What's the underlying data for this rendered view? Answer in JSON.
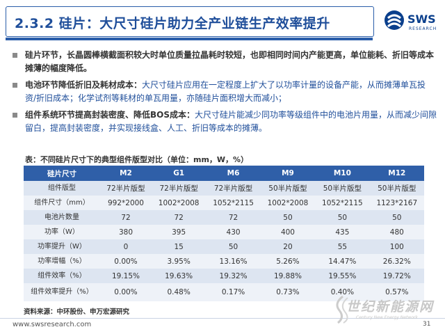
{
  "header": {
    "title": "2.3.2 硅片：大尺寸硅片助力全产业链生产效率提升",
    "logo_text": "SWS",
    "logo_sub": "RESEARCH"
  },
  "bullets": [
    {
      "bold": "硅片环节，长晶圆棒横截面积较大时单位质量拉晶耗时较短，也即相同时间内产能更高，单位能耗、折旧等成本摊薄的幅度降低。",
      "rest": ""
    },
    {
      "bold": "电池环节降低折旧及耗材成本：",
      "rest": "大尺寸硅片应用在一定程度上扩大了以功率计量的设备产能，从而摊薄单瓦投资/折旧成本；化学试剂等耗材的单瓦用量，亦随硅片面积增大而减小；"
    },
    {
      "bold": "组件系统环节提高封装密度、降低BOS成本：",
      "rest": "大尺寸硅片能减少同功率等级组件中的电池片用量，从而减少间隙留白，提高封装密度，并实现接线盒、人工、折旧等成本的摊薄。"
    }
  ],
  "table": {
    "caption": "表：不同硅片尺寸下的典型组件版型对比（单位：mm，W，%）",
    "headers": [
      "硅片尺寸",
      "M2",
      "G1",
      "M6",
      "M9",
      "M10",
      "M12"
    ],
    "rows": [
      [
        "组件版型",
        "72半片版型",
        "72半片版型",
        "72半片版型",
        "50半片版型",
        "50半片版型",
        "50半片版型"
      ],
      [
        "组件尺寸（mm）",
        "992*2000",
        "1002*2008",
        "1052*2115",
        "1002*2008",
        "1052*2115",
        "1123*2167"
      ],
      [
        "电池片数量",
        "72",
        "72",
        "72",
        "50",
        "50",
        "50"
      ],
      [
        "功率（W）",
        "380",
        "395",
        "430",
        "400",
        "435",
        "480"
      ],
      [
        "功率提升（W）",
        "0",
        "15",
        "50",
        "20",
        "55",
        "100"
      ],
      [
        "功率增幅（%）",
        "0.00%",
        "3.95%",
        "13.16%",
        "5.26%",
        "14.47%",
        "26.32%"
      ],
      [
        "组件效率（%）",
        "19.15%",
        "19.63%",
        "19.32%",
        "19.88%",
        "19.55%",
        "19.72%"
      ],
      [
        "组件效率提升（%）",
        "0.00%",
        "0.48%",
        "0.17%",
        "0.73%",
        "0.40%",
        "0.57%"
      ]
    ]
  },
  "source": "资料来源：中环股份、申万宏源研究",
  "footer": {
    "url": "www.swsresearch.com",
    "page": "31"
  },
  "watermark": {
    "text": "世纪新能源网",
    "sub": "Century New Energy Network"
  }
}
